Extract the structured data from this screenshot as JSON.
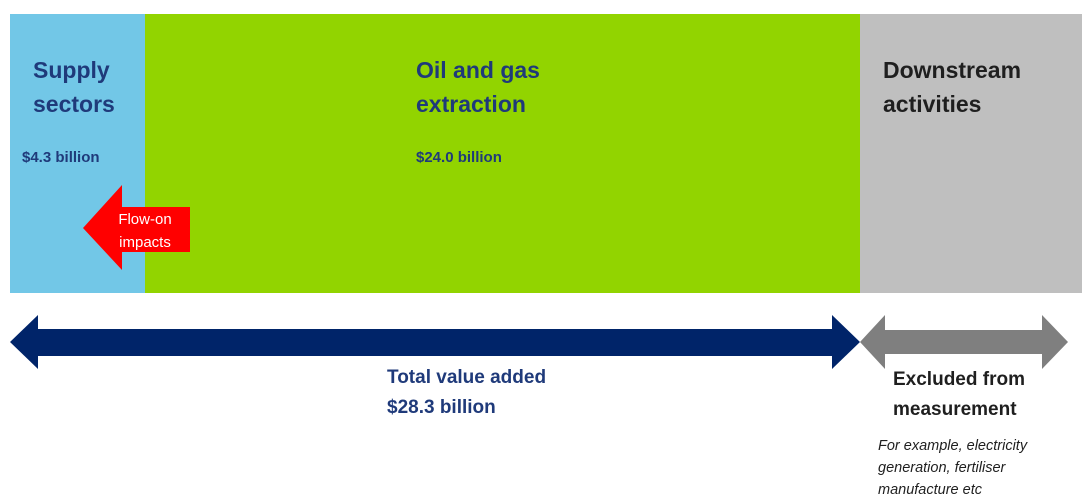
{
  "segments": [
    {
      "title_lines": [
        "Supply",
        "sectors"
      ],
      "value": "$4.3 billion"
    },
    {
      "title_lines": [
        "Oil and gas",
        "extraction"
      ],
      "value": "$24.0 billion"
    },
    {
      "title_lines": [
        "Downstream",
        "activities"
      ]
    }
  ],
  "flow_arrow": {
    "lines": [
      "Flow-on",
      "impacts"
    ]
  },
  "total": {
    "lines": [
      "Total value added",
      "$28.3 billion"
    ]
  },
  "excluded": {
    "lines": [
      "Excluded from",
      "measurement"
    ],
    "note_lines": [
      "For example, electricity",
      "generation, fertiliser",
      "manufacture etc"
    ]
  }
}
